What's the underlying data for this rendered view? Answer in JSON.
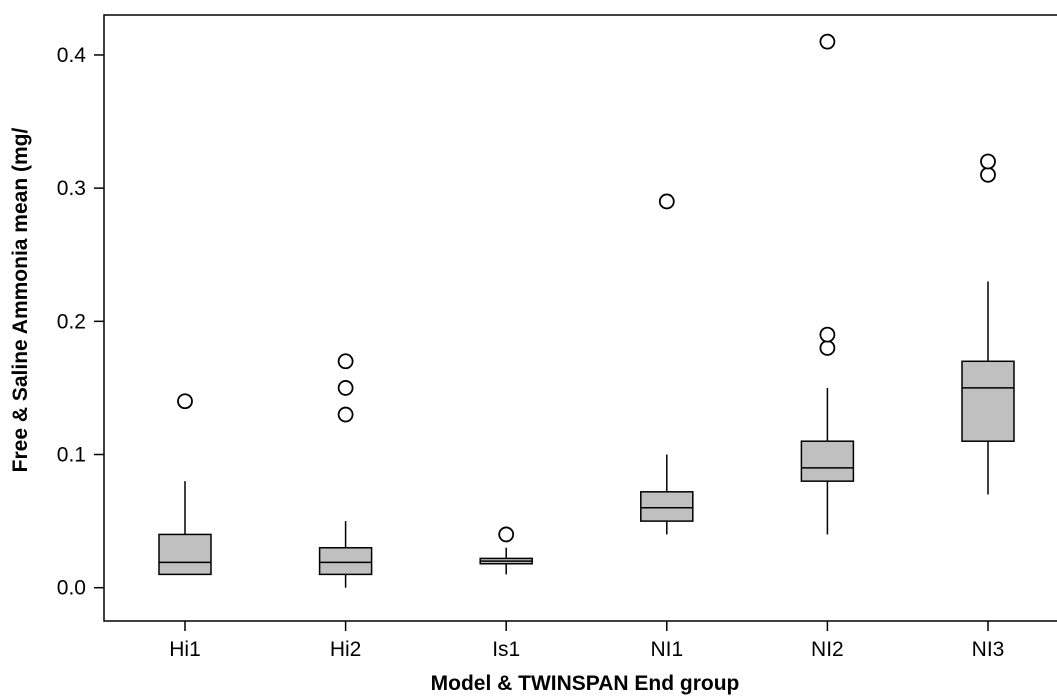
{
  "chart_data": {
    "type": "boxplot",
    "title": "",
    "xlabel": "Model & TWINSPAN End group",
    "ylabel": "Free & Saline Ammonia mean (mg/",
    "ylim": [
      -0.025,
      0.43
    ],
    "yticks": [
      0.0,
      0.1,
      0.2,
      0.3,
      0.4
    ],
    "ytick_labels": [
      "0.0",
      "0.1",
      "0.2",
      "0.3",
      "0.4"
    ],
    "grid": false,
    "box_color": "#c0c0c0",
    "categories": [
      "Hi1",
      "Hi2",
      "Is1",
      "NI1",
      "NI2",
      "NI3"
    ],
    "boxes": [
      {
        "label": "Hi1",
        "whisker_low": 0.01,
        "q1": 0.01,
        "median": 0.019,
        "q3": 0.04,
        "whisker_high": 0.08,
        "outliers": [
          0.14
        ]
      },
      {
        "label": "Hi2",
        "whisker_low": 0.0,
        "q1": 0.01,
        "median": 0.019,
        "q3": 0.03,
        "whisker_high": 0.05,
        "outliers": [
          0.13,
          0.15,
          0.17
        ]
      },
      {
        "label": "Is1",
        "whisker_low": 0.01,
        "q1": 0.018,
        "median": 0.02,
        "q3": 0.022,
        "whisker_high": 0.03,
        "outliers": [
          0.04
        ]
      },
      {
        "label": "NI1",
        "whisker_low": 0.04,
        "q1": 0.05,
        "median": 0.06,
        "q3": 0.072,
        "whisker_high": 0.1,
        "outliers": [
          0.29
        ]
      },
      {
        "label": "NI2",
        "whisker_low": 0.04,
        "q1": 0.08,
        "median": 0.09,
        "q3": 0.11,
        "whisker_high": 0.15,
        "outliers": [
          0.18,
          0.19,
          0.41
        ]
      },
      {
        "label": "NI3",
        "whisker_low": 0.07,
        "q1": 0.11,
        "median": 0.15,
        "q3": 0.17,
        "whisker_high": 0.23,
        "outliers": [
          0.31,
          0.32
        ]
      }
    ]
  }
}
